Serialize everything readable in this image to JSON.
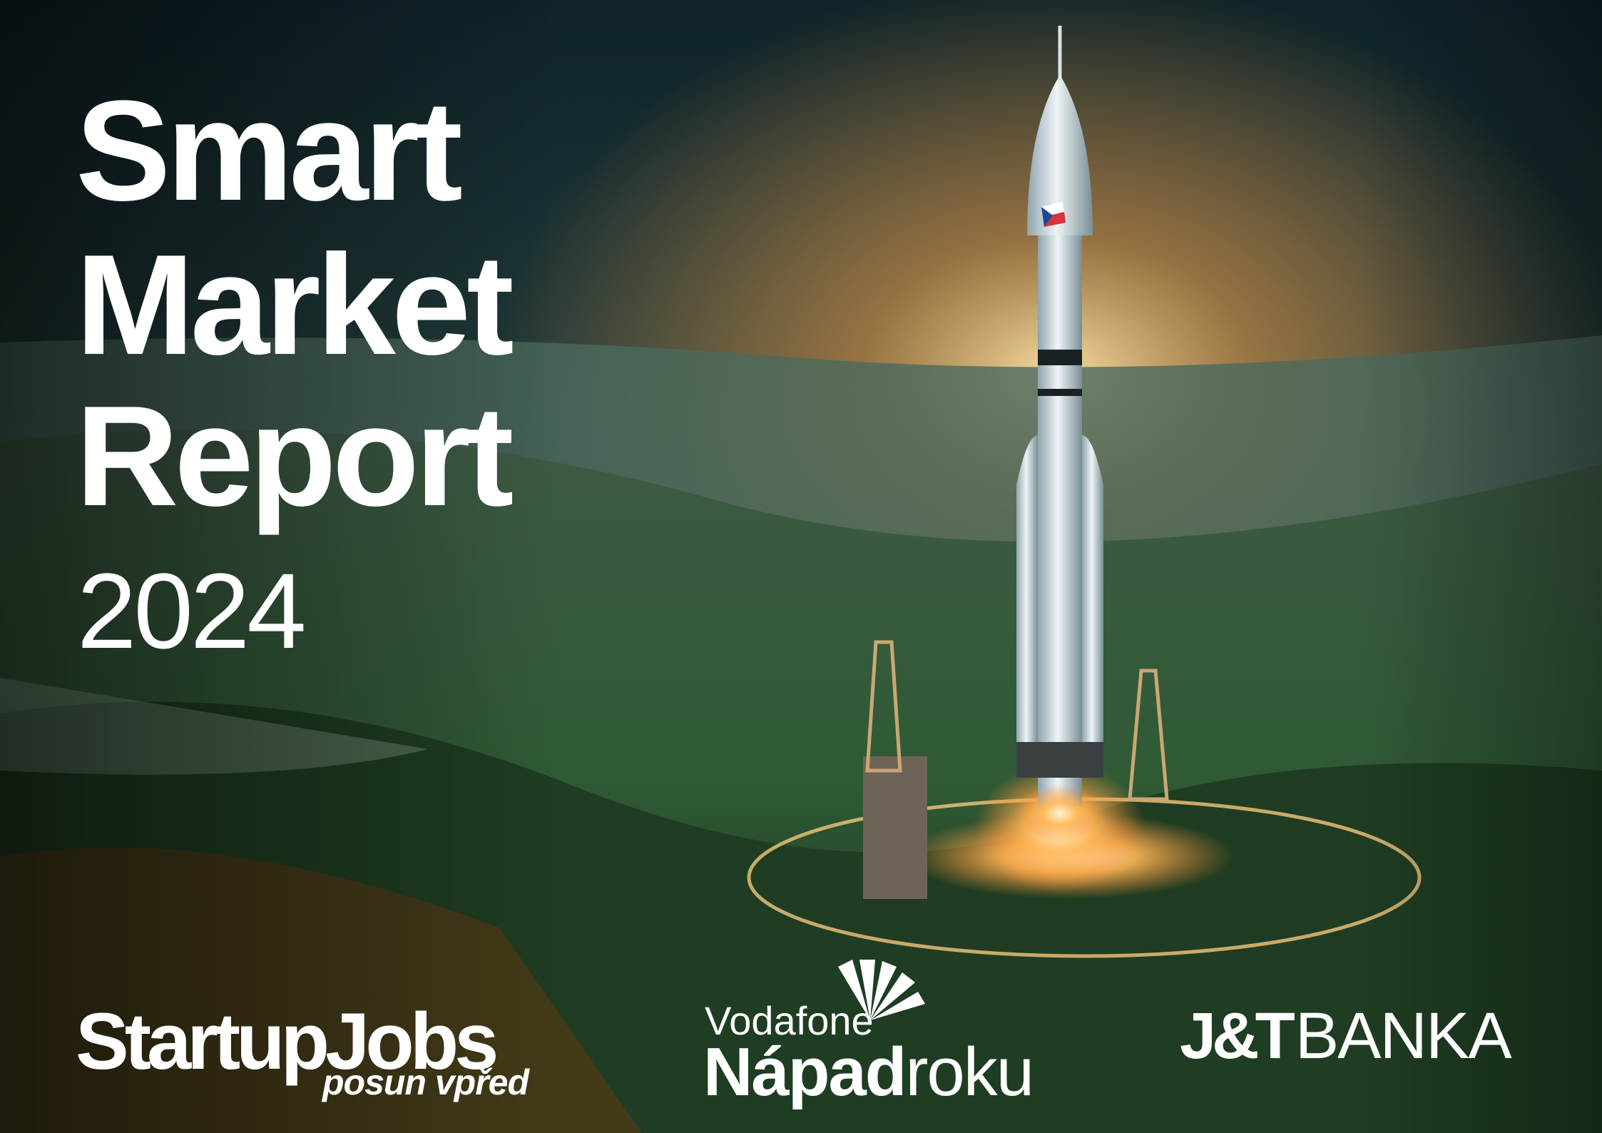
{
  "cover": {
    "title_lines": [
      "Smart",
      "Market",
      "Report"
    ],
    "year": "2024"
  },
  "logos": {
    "startupjobs": {
      "name": "StartupJobs",
      "tagline": "posun vpřed"
    },
    "vodafone": {
      "brand": "Vodafone",
      "bold": "Nápad",
      "light": "roku"
    },
    "jt": {
      "bold": "J&T",
      "light": "BANKA"
    }
  }
}
